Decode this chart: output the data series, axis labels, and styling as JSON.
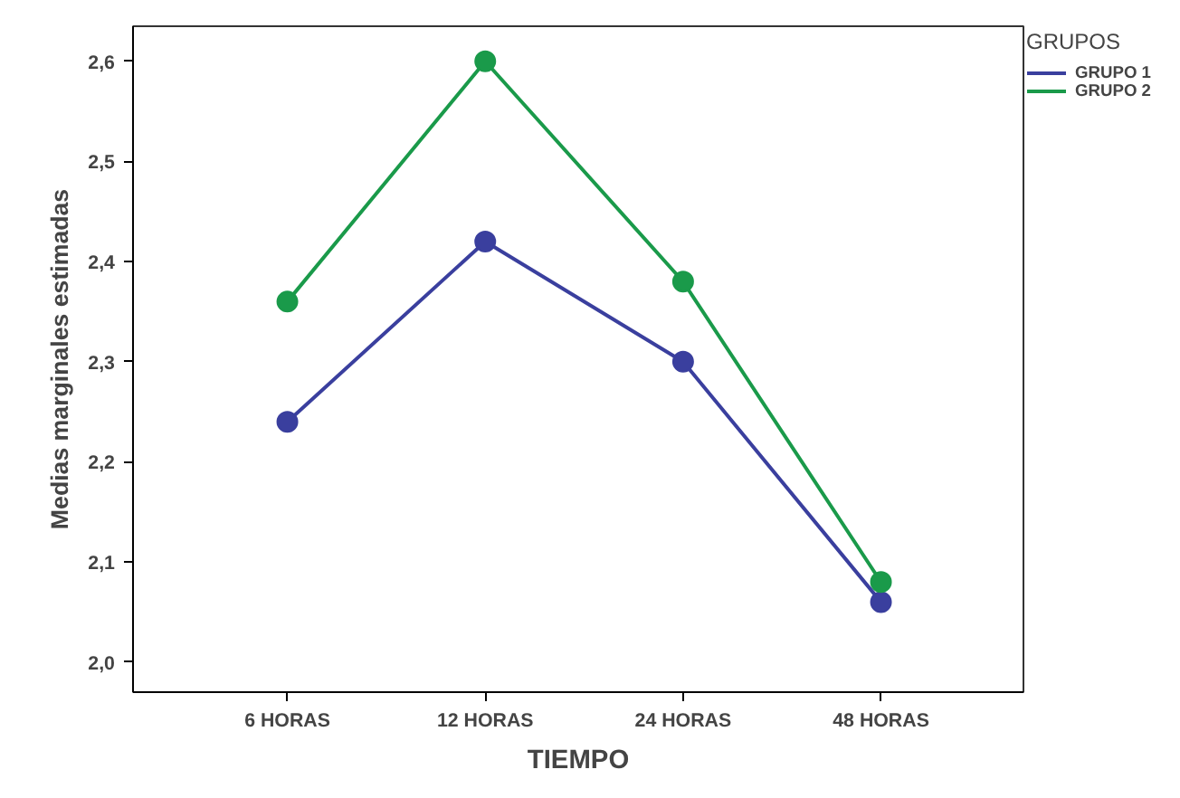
{
  "chart_data": {
    "type": "line",
    "xlabel": "TIEMPO",
    "ylabel": "Medias marginales estimadas",
    "legend_title": "GRUPOS",
    "categories": [
      "6 HORAS",
      "12 HORAS",
      "24 HORAS",
      "48 HORAS"
    ],
    "series": [
      {
        "name": "GRUPO 1",
        "color": "#3a3f9e",
        "values": [
          2.24,
          2.42,
          2.3,
          2.06
        ]
      },
      {
        "name": "GRUPO 2",
        "color": "#1a9a4a",
        "values": [
          2.36,
          2.6,
          2.38,
          2.08
        ]
      }
    ],
    "ylim": [
      1.97,
      2.635
    ],
    "yticks": [
      {
        "value": 2.0,
        "label": "2,0"
      },
      {
        "value": 2.1,
        "label": "2,1"
      },
      {
        "value": 2.2,
        "label": "2,2"
      },
      {
        "value": 2.3,
        "label": "2,3"
      },
      {
        "value": 2.4,
        "label": "2,4"
      },
      {
        "value": 2.5,
        "label": "2,5"
      },
      {
        "value": 2.6,
        "label": "2,6"
      }
    ],
    "grid": false,
    "legend": "top right",
    "marker": "circle",
    "line_style": "solid"
  }
}
